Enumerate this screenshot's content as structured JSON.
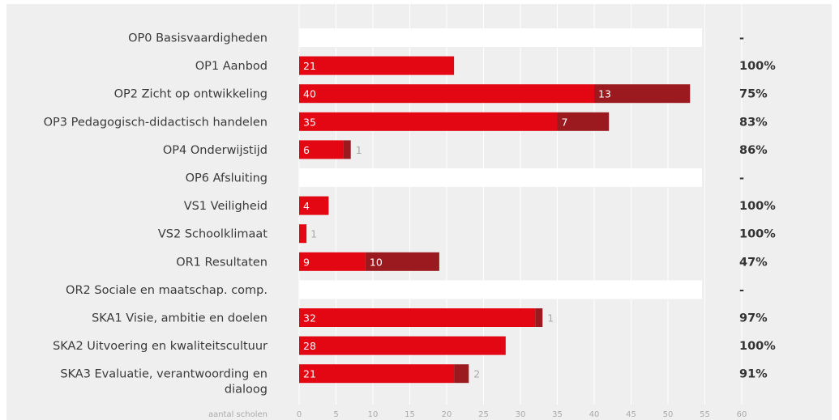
{
  "chart_data": {
    "type": "bar",
    "orientation": "horizontal",
    "stacked": true,
    "xlabel": "aantal scholen",
    "xlim": [
      0,
      67
    ],
    "xticks": [
      0,
      5,
      10,
      15,
      20,
      25,
      30,
      35,
      40,
      45,
      50,
      55,
      60
    ],
    "grid": true,
    "categories": [
      {
        "label": "OP0 Basisvaardigheden",
        "values": [
          null,
          null
        ],
        "percent": "-"
      },
      {
        "label": "OP1 Aanbod",
        "values": [
          21,
          0
        ],
        "percent": "100%"
      },
      {
        "label": "OP2 Zicht op ontwikkeling",
        "values": [
          40,
          13
        ],
        "percent": "75%"
      },
      {
        "label": "OP3 Pedagogisch-didactisch handelen",
        "values": [
          35,
          7
        ],
        "percent": "83%"
      },
      {
        "label": "OP4 Onderwijstijd",
        "values": [
          6,
          1
        ],
        "percent": "86%"
      },
      {
        "label": "OP6 Afsluiting",
        "values": [
          null,
          null
        ],
        "percent": "-"
      },
      {
        "label": "VS1 Veiligheid",
        "values": [
          4,
          0
        ],
        "percent": "100%"
      },
      {
        "label": "VS2 Schoolklimaat",
        "values": [
          1,
          0
        ],
        "percent": "100%"
      },
      {
        "label": "OR1 Resultaten",
        "values": [
          9,
          10
        ],
        "percent": "47%"
      },
      {
        "label": "OR2 Sociale en maatschap. comp.",
        "values": [
          null,
          null
        ],
        "percent": "-"
      },
      {
        "label": "SKA1 Visie, ambitie en doelen",
        "values": [
          32,
          1
        ],
        "percent": "97%"
      },
      {
        "label": "SKA2 Uitvoering en kwaliteitscultuur",
        "values": [
          28,
          0
        ],
        "percent": "100%"
      },
      {
        "label": "SKA3 Evaluatie, verantwoording en dialoog",
        "values": [
          21,
          2
        ],
        "percent": "91%"
      }
    ],
    "colors": {
      "segment_1": "#e30613",
      "segment_2": "#9b1a1f",
      "empty_row": "#ffffff",
      "background": "#efefef",
      "gridline": "#ffffff"
    }
  }
}
